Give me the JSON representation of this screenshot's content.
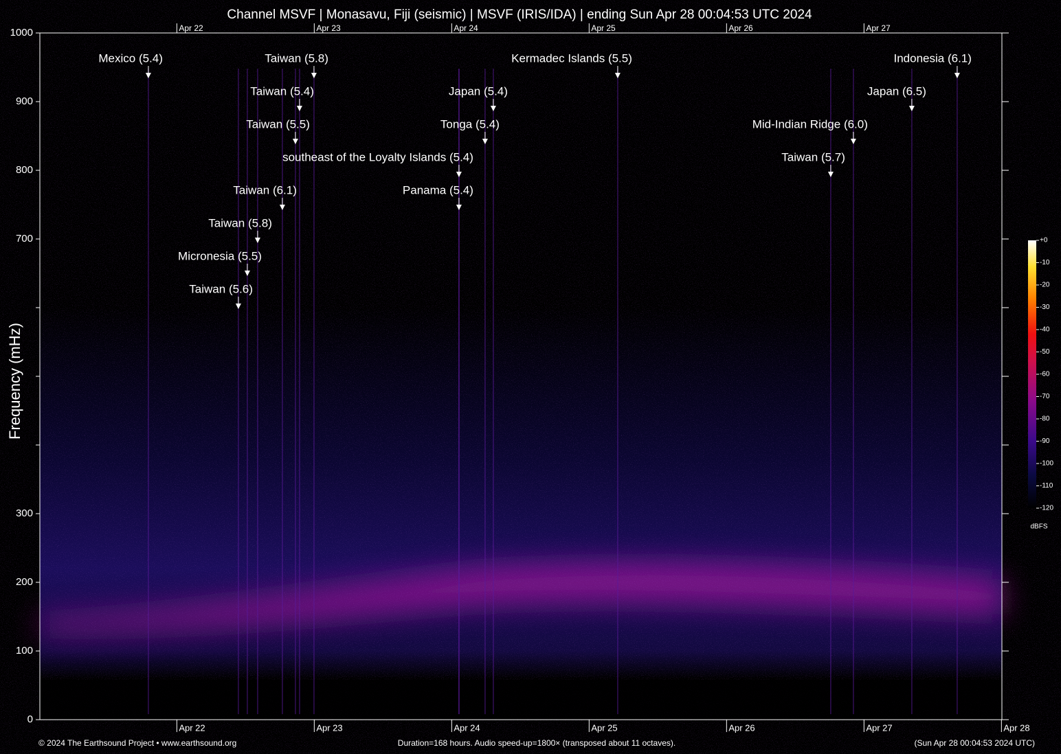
{
  "chart_data": {
    "type": "spectrogram",
    "title": "Channel MSVF | Monasavu, Fiji (seismic) | MSVF (IRIS/IDA) | ending Sun Apr 28 00:04:53 UTC 2024",
    "y_label": "Frequency (mHz)",
    "xlim": [
      21.0034,
      28.0034
    ],
    "xticks": [
      {
        "value": 22,
        "label": "Apr 22"
      },
      {
        "value": 23,
        "label": "Apr 23"
      },
      {
        "value": 24,
        "label": "Apr 24"
      },
      {
        "value": 25,
        "label": "Apr 25"
      },
      {
        "value": 26,
        "label": "Apr 26"
      },
      {
        "value": 27,
        "label": "Apr 27"
      },
      {
        "value": 28,
        "label": "Apr 28"
      }
    ],
    "ylim": [
      0,
      1000
    ],
    "yticks": [
      0,
      100,
      200,
      300,
      700,
      800,
      900,
      1000
    ],
    "yticks_unlabeled": [
      400,
      500,
      600
    ],
    "colorbar": {
      "label": "dBFS",
      "lim": [
        -120,
        0
      ],
      "ticks": [
        {
          "value": 0,
          "label": "+0"
        },
        -10,
        -20,
        -30,
        -40,
        -50,
        -60,
        -70,
        -80,
        -90,
        -100,
        -110,
        -120
      ]
    },
    "annotations": [
      {
        "label": "Mexico (5.4)",
        "x": 21.793
      },
      {
        "label": "Taiwan (5.8)",
        "x": 22.998
      },
      {
        "label": "Taiwan (5.4)",
        "x": 22.893
      },
      {
        "label": "Taiwan (5.5)",
        "x": 22.863
      },
      {
        "label": "southeast of the Loyalty Islands (5.4)",
        "x": 24.053
      },
      {
        "label": "Taiwan (6.1)",
        "x": 22.768
      },
      {
        "label": "Taiwan (5.8)",
        "x": 22.588
      },
      {
        "label": "Micronesia (5.5)",
        "x": 22.513
      },
      {
        "label": "Taiwan (5.6)",
        "x": 22.448
      },
      {
        "label": "Japan (5.4)",
        "x": 24.303
      },
      {
        "label": "Tonga (5.4)",
        "x": 24.243
      },
      {
        "label": "Panama (5.4)",
        "x": 24.053
      },
      {
        "label": "Kermadec Islands (5.5)",
        "x": 25.208
      },
      {
        "label": "Indonesia (6.1)",
        "x": 27.678
      },
      {
        "label": "Japan (6.5)",
        "x": 27.348
      },
      {
        "label": "Mid-Indian Ridge (6.0)",
        "x": 26.923
      },
      {
        "label": "Taiwan (5.7)",
        "x": 26.758
      }
    ],
    "footer_left": "© 2024 The Earthsound Project • www.earthsound.org",
    "footer_center": "Duration=168 hours. Audio speed-up=1800× (transposed about 11 octaves).",
    "footer_right": "(Sun Apr 28 00:04:53 2024 UTC)"
  }
}
